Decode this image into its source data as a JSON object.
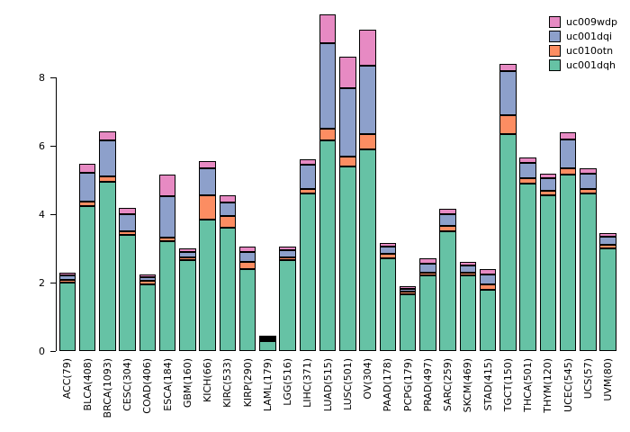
{
  "chart_data": {
    "type": "bar",
    "stacked": true,
    "title": "",
    "xlabel": "",
    "ylabel": "",
    "ylim": [
      0,
      9.9
    ],
    "yticks": [
      0,
      2,
      4,
      6,
      8
    ],
    "grid": false,
    "legend_position": "top-right",
    "categories": [
      "ACC(79)",
      "BLCA(408)",
      "BRCA(1093)",
      "CESC(304)",
      "COAD(406)",
      "ESCA(184)",
      "GBM(160)",
      "KICH(66)",
      "KIRC(533)",
      "KIRP(290)",
      "LAML(179)",
      "LGG(516)",
      "LIHC(371)",
      "LUAD(515)",
      "LUSC(501)",
      "OV(304)",
      "PAAD(178)",
      "PCPG(179)",
      "PRAD(497)",
      "SARC(259)",
      "SKCM(469)",
      "STAD(415)",
      "TGCT(150)",
      "THCA(501)",
      "THYM(120)",
      "UCEC(545)",
      "UCS(57)",
      "UVM(80)"
    ],
    "series": [
      {
        "name": "uc001dqh",
        "values": [
          2.0,
          4.25,
          4.95,
          3.4,
          1.95,
          3.2,
          2.65,
          3.85,
          3.6,
          2.4,
          0.3,
          2.65,
          4.6,
          6.15,
          5.4,
          5.9,
          2.7,
          1.65,
          2.2,
          3.5,
          2.2,
          1.8,
          6.35,
          4.9,
          4.55,
          5.15,
          4.6,
          3.0
        ]
      },
      {
        "name": "uc010otn",
        "values": [
          0.08,
          0.12,
          0.15,
          0.1,
          0.1,
          0.12,
          0.1,
          0.7,
          0.35,
          0.2,
          0.05,
          0.1,
          0.15,
          0.35,
          0.3,
          0.45,
          0.15,
          0.08,
          0.1,
          0.15,
          0.1,
          0.15,
          0.55,
          0.15,
          0.15,
          0.2,
          0.15,
          0.1
        ]
      },
      {
        "name": "uc001dqi",
        "values": [
          0.12,
          0.85,
          1.05,
          0.5,
          0.12,
          1.2,
          0.15,
          0.8,
          0.4,
          0.3,
          0.04,
          0.2,
          0.7,
          2.5,
          2.0,
          2.0,
          0.2,
          0.1,
          0.25,
          0.35,
          0.2,
          0.3,
          1.3,
          0.45,
          0.35,
          0.85,
          0.45,
          0.25
        ]
      },
      {
        "name": "uc009wdp",
        "values": [
          0.1,
          0.25,
          0.27,
          0.2,
          0.08,
          0.65,
          0.1,
          0.2,
          0.2,
          0.15,
          0.03,
          0.1,
          0.15,
          0.85,
          0.9,
          1.05,
          0.1,
          0.07,
          0.15,
          0.15,
          0.1,
          0.15,
          0.2,
          0.15,
          0.15,
          0.2,
          0.15,
          0.1
        ]
      }
    ],
    "legend": [
      "uc009wdp",
      "uc001dqi",
      "uc010otn",
      "uc001dqh"
    ],
    "colors": {
      "uc001dqh": "#66C2A5",
      "uc010otn": "#FC8D62",
      "uc001dqi": "#8DA0CB",
      "uc009wdp": "#E78AC3"
    }
  }
}
